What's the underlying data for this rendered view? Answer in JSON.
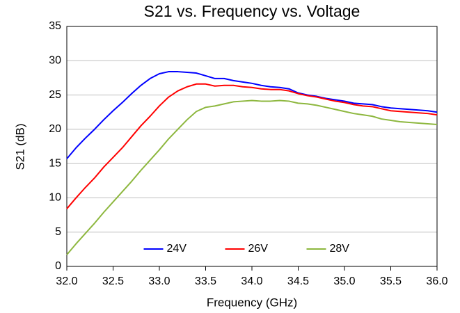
{
  "chart_data": {
    "type": "line",
    "title": "S21 vs. Frequency vs. Voltage",
    "x_label": "Frequency (GHz)",
    "y_label": "S21 (dB)",
    "x": [
      32.0,
      32.1,
      32.2,
      32.3,
      32.4,
      32.5,
      32.6,
      32.7,
      32.8,
      32.9,
      33.0,
      33.1,
      33.2,
      33.3,
      33.4,
      33.5,
      33.6,
      33.7,
      33.8,
      33.9,
      34.0,
      34.1,
      34.2,
      34.3,
      34.4,
      34.5,
      34.6,
      34.7,
      34.8,
      34.9,
      35.0,
      35.1,
      35.2,
      35.3,
      35.4,
      35.5,
      35.6,
      35.7,
      35.8,
      35.9,
      36.0
    ],
    "series": [
      {
        "name": "24V",
        "color": "#0000ff",
        "values": [
          15.7,
          17.3,
          18.7,
          20.0,
          21.4,
          22.7,
          23.9,
          25.2,
          26.4,
          27.4,
          28.1,
          28.4,
          28.4,
          28.3,
          28.2,
          27.8,
          27.4,
          27.4,
          27.1,
          26.9,
          26.7,
          26.4,
          26.2,
          26.1,
          25.9,
          25.3,
          25.0,
          24.8,
          24.5,
          24.3,
          24.1,
          23.8,
          23.7,
          23.6,
          23.3,
          23.1,
          23.0,
          22.9,
          22.8,
          22.7,
          22.5
        ]
      },
      {
        "name": "26V",
        "color": "#ff0000",
        "values": [
          8.4,
          10.0,
          11.5,
          12.9,
          14.5,
          15.9,
          17.3,
          18.9,
          20.5,
          21.9,
          23.4,
          24.7,
          25.6,
          26.2,
          26.6,
          26.6,
          26.3,
          26.4,
          26.4,
          26.2,
          26.1,
          25.9,
          25.8,
          25.8,
          25.6,
          25.2,
          24.9,
          24.7,
          24.4,
          24.1,
          23.9,
          23.6,
          23.4,
          23.3,
          23.0,
          22.7,
          22.6,
          22.5,
          22.4,
          22.3,
          22.1
        ]
      },
      {
        "name": "28V",
        "color": "#8db73e",
        "values": [
          1.7,
          3.3,
          4.8,
          6.3,
          7.9,
          9.4,
          10.9,
          12.4,
          14.0,
          15.5,
          17.0,
          18.6,
          20.0,
          21.4,
          22.6,
          23.2,
          23.4,
          23.7,
          24.0,
          24.1,
          24.2,
          24.1,
          24.1,
          24.2,
          24.1,
          23.8,
          23.7,
          23.5,
          23.2,
          22.9,
          22.6,
          22.3,
          22.1,
          21.9,
          21.5,
          21.3,
          21.1,
          21.0,
          20.9,
          20.8,
          20.7
        ]
      }
    ],
    "xlim": [
      32,
      36
    ],
    "xticks": [
      {
        "value": 32,
        "label": "32.0"
      },
      32.5,
      {
        "value": 33,
        "label": "33.0"
      },
      33.5,
      {
        "value": 34,
        "label": "34.0"
      },
      34.5,
      {
        "value": 35,
        "label": "35.0"
      },
      35.5,
      {
        "value": 36,
        "label": "36.0"
      }
    ],
    "ylim": [
      0,
      35
    ],
    "yticks": [
      0,
      5,
      10,
      15,
      20,
      25,
      30,
      35
    ],
    "grid": true,
    "legend": "bottom"
  }
}
